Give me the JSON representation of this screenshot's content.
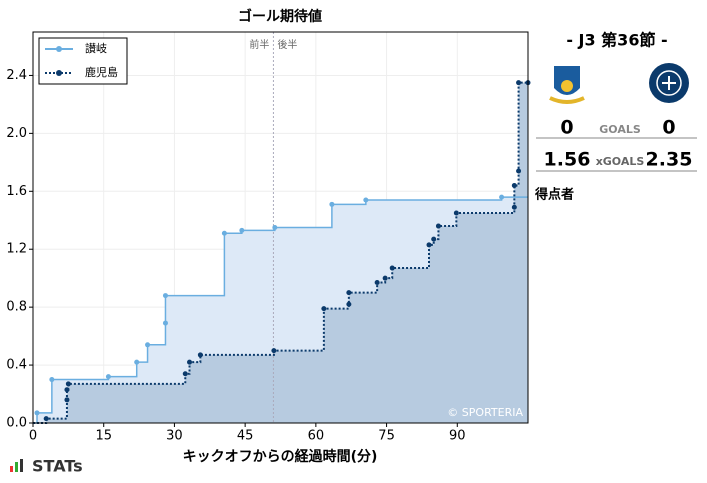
{
  "chart_data": {
    "type": "step",
    "title": "ゴール期待値",
    "x_label": "キックオフからの経過時間(分)",
    "xlim": [
      0,
      105
    ],
    "xticks": [
      0,
      15,
      30,
      45,
      60,
      75,
      90
    ],
    "ylim": [
      0,
      2.7
    ],
    "yticks": [
      {
        "value": 0,
        "label": "0.0"
      },
      {
        "value": 0.4,
        "label": "0.4"
      },
      {
        "value": 0.8,
        "label": "0.8"
      },
      {
        "value": 1.2,
        "label": "1.2"
      },
      {
        "value": 1.6,
        "label": "1.6"
      },
      {
        "value": 2.0,
        "label": "2.0"
      },
      {
        "value": 2.4,
        "label": "2.4"
      }
    ],
    "grid": true,
    "legend": "upper left",
    "halftime": {
      "x": 51,
      "labels": [
        "前半",
        "後半"
      ]
    },
    "watermark": "© SPORTERIA",
    "series": [
      {
        "name": "讃岐",
        "color": "#6aaee0",
        "fill": "#dde9f7",
        "style": "solid",
        "x": [
          0.85,
          4,
          16,
          22,
          24.3,
          28.1,
          28.1,
          40.6,
          44.3,
          51.3,
          63.4,
          70.6,
          99.4
        ],
        "values": [
          0.07,
          0.3,
          0.32,
          0.42,
          0.54,
          0.69,
          0.88,
          1.31,
          1.33,
          1.35,
          1.51,
          1.54,
          1.56
        ]
      },
      {
        "name": "鹿児島",
        "color": "#0b3a6b",
        "fill": "#b7cbe0",
        "style": "dotted",
        "x": [
          2.8,
          7.2,
          7.2,
          7.5,
          32.3,
          33.2,
          35.5,
          51.1,
          61.7,
          67,
          67,
          73,
          74.7,
          76.2,
          84,
          85,
          86,
          89.8,
          102.1,
          102.1,
          103,
          103,
          105
        ],
        "values": [
          0.03,
          0.16,
          0.23,
          0.27,
          0.34,
          0.42,
          0.47,
          0.5,
          0.79,
          0.82,
          0.9,
          0.97,
          1.0,
          1.07,
          1.23,
          1.27,
          1.36,
          1.45,
          1.49,
          1.64,
          1.74,
          2.35,
          2.35
        ]
      }
    ]
  },
  "scoreboard": {
    "heading": "- J3 第36節 -",
    "goals_label": "GOALS",
    "home_goals": "0",
    "away_goals": "0",
    "xgoals_label": "xGOALS",
    "home_xg": "1.56",
    "away_xg": "2.35",
    "scorers_label": "得点者"
  },
  "footer": {
    "brand": "STATs"
  }
}
